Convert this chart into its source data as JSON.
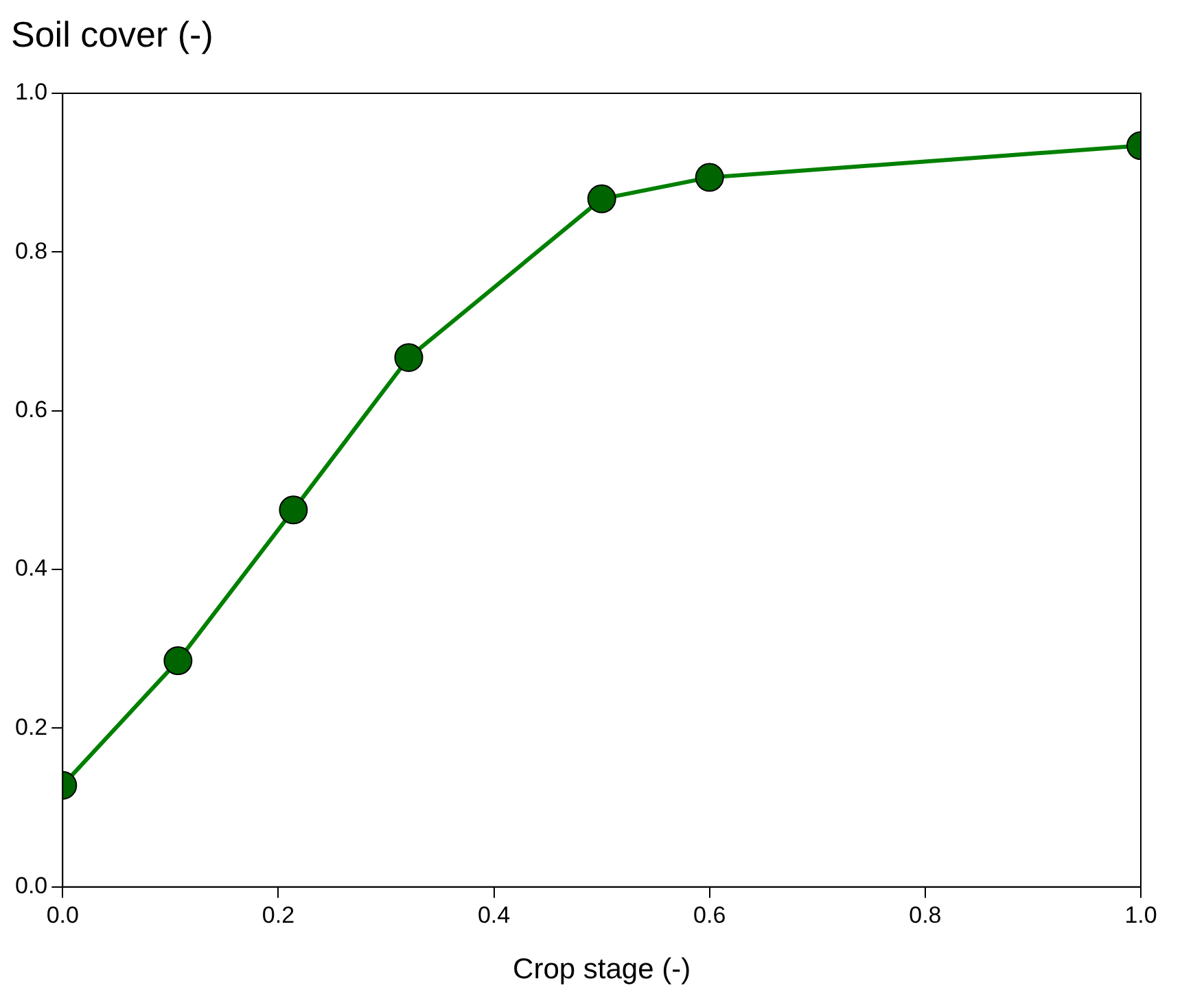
{
  "chart_data": {
    "type": "line",
    "xlabel": "Crop stage (-)",
    "ylabel": "Soil cover (-)",
    "x": [
      0,
      0.107,
      0.214,
      0.321,
      0.5,
      0.6,
      1.0
    ],
    "series": [
      {
        "color": "#008000",
        "values": [
          0.128,
          0.285,
          0.475,
          0.667,
          0.867,
          0.894,
          0.934
        ]
      }
    ],
    "xlim": [
      0,
      1
    ],
    "xticks": [
      {
        "value": 0,
        "label": "0.0"
      },
      0.2,
      0.4,
      0.6,
      0.8,
      {
        "value": 1,
        "label": "1.0"
      }
    ],
    "ylim": [
      0,
      1
    ],
    "yticks": [
      {
        "value": 0,
        "label": "0.0"
      },
      0.2,
      0.4,
      0.6,
      0.8,
      {
        "value": 1,
        "label": "1.0"
      }
    ],
    "grid": false,
    "legend": false,
    "marker": "circle",
    "line_style": "solid"
  }
}
